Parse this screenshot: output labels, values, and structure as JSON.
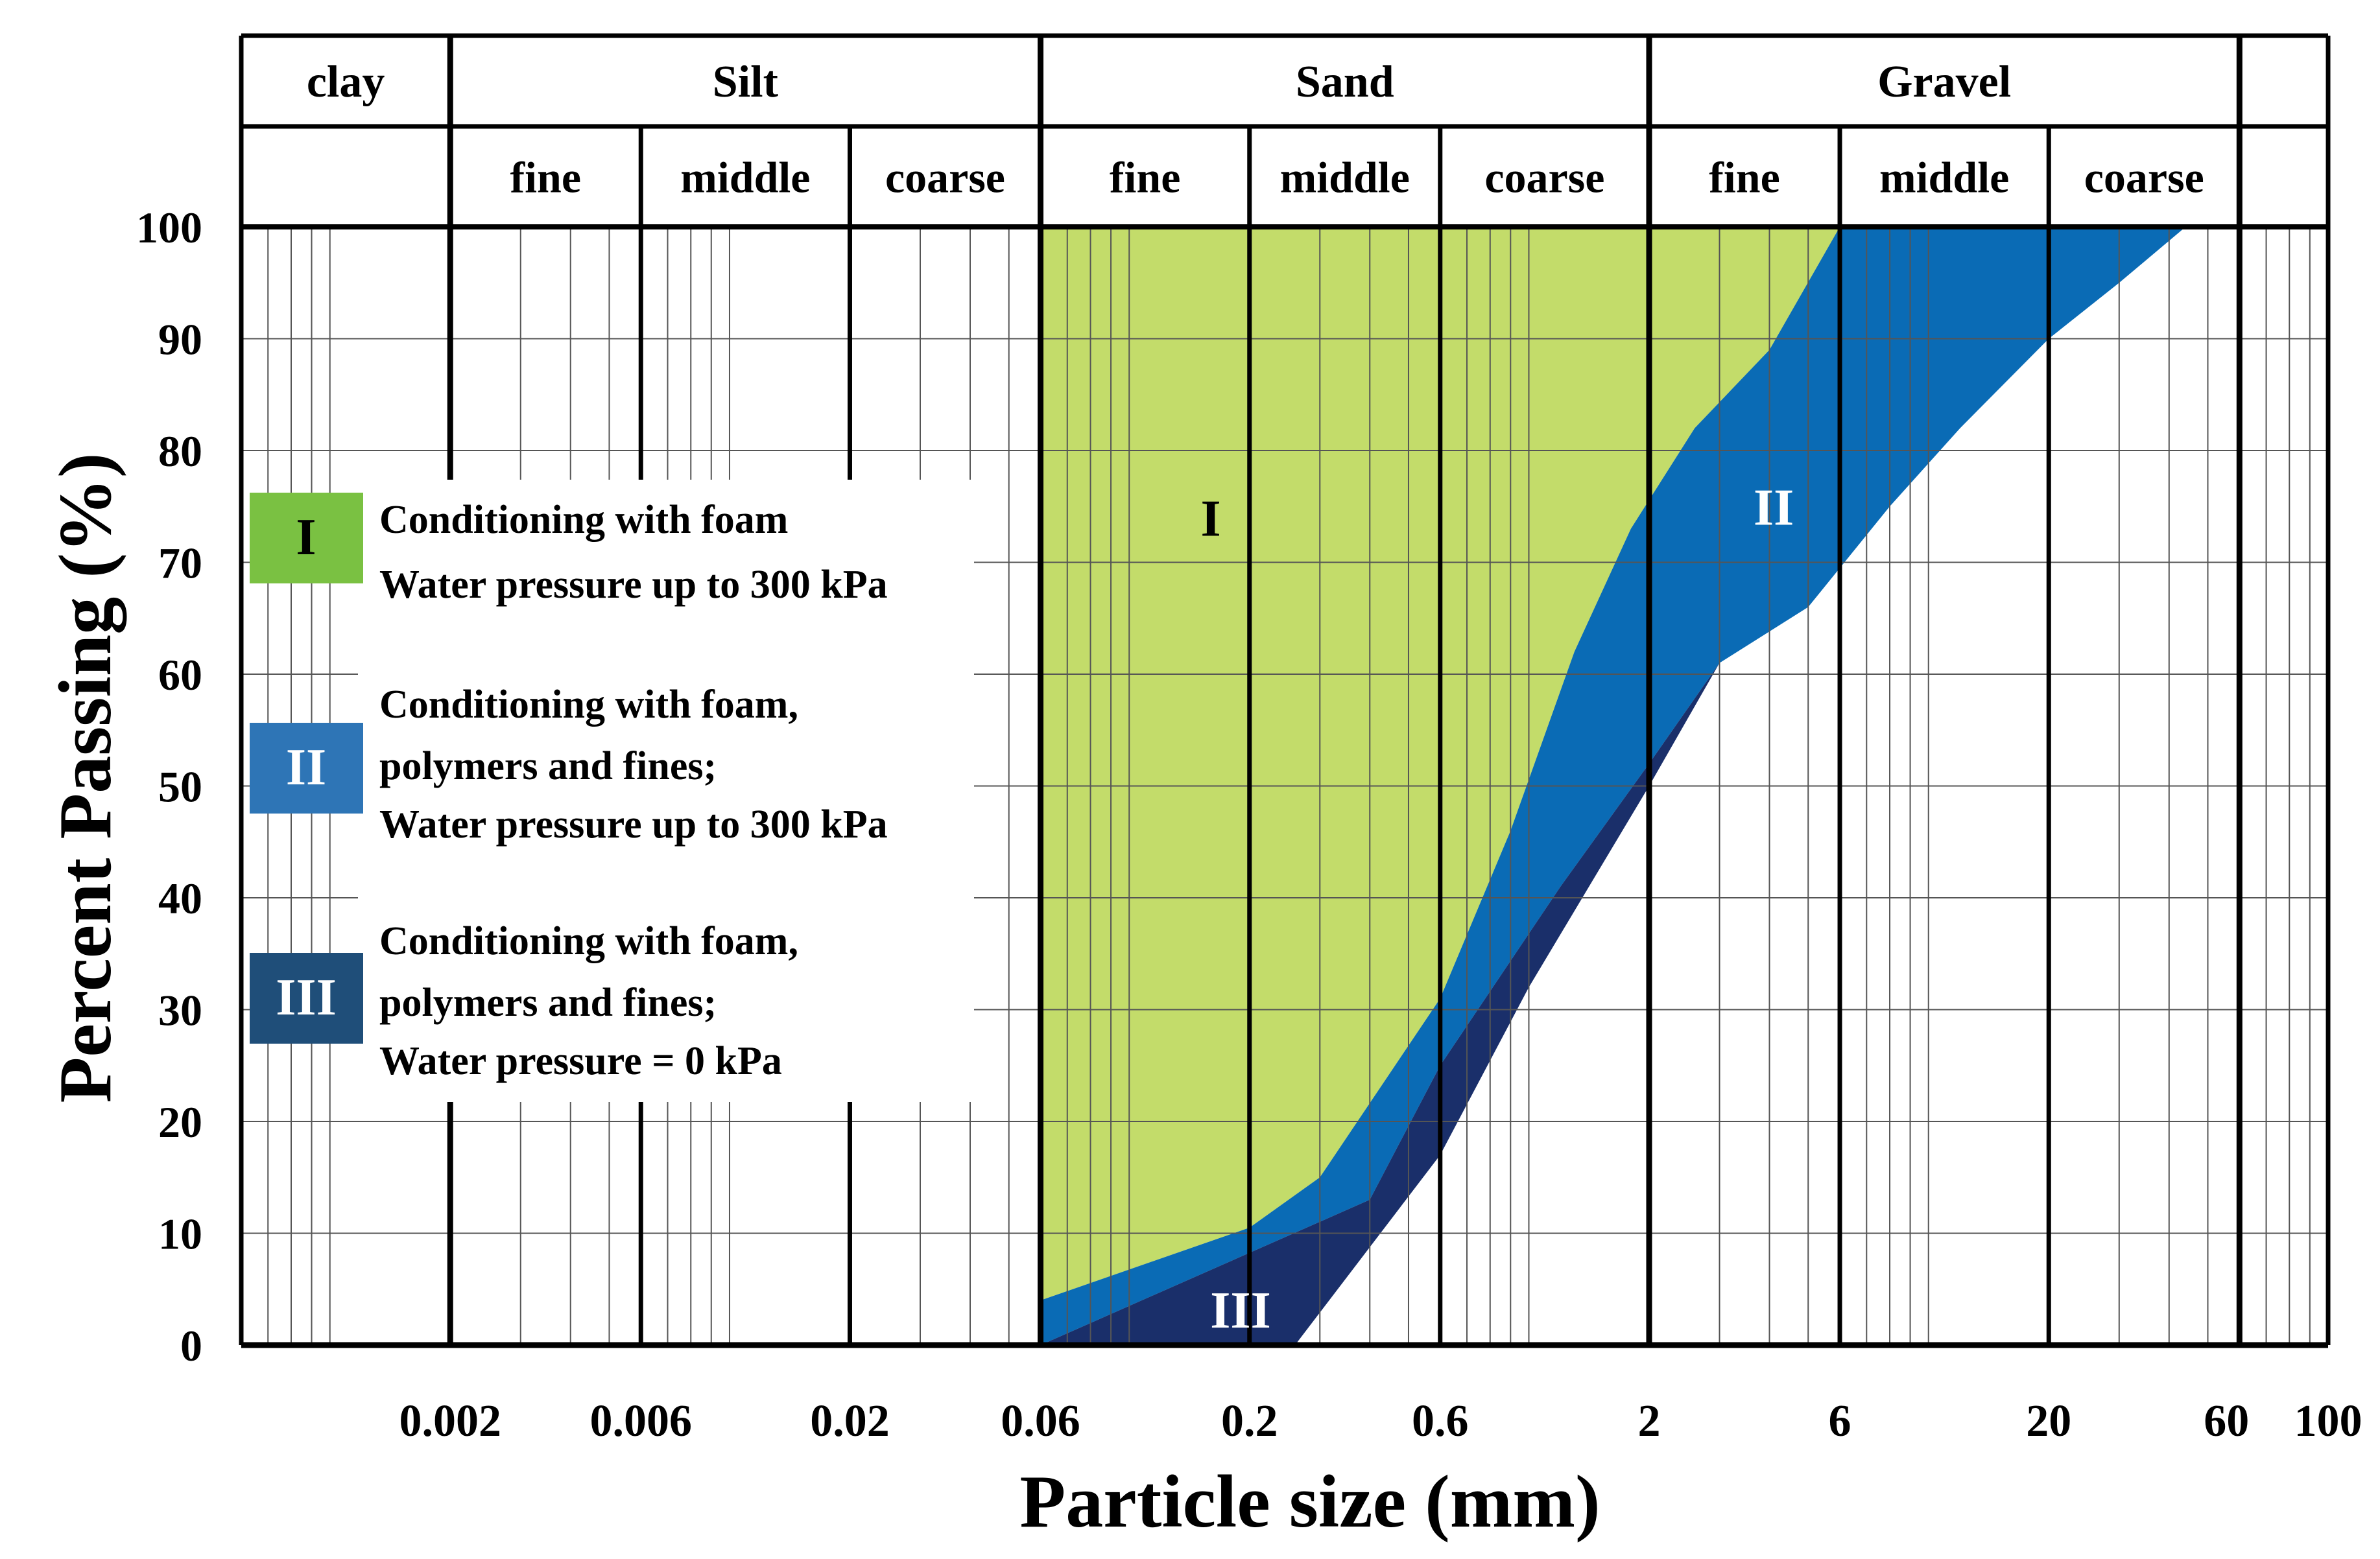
{
  "chart_data": {
    "type": "area",
    "title": "",
    "xlabel": "Particle size (mm)",
    "ylabel": "Percent Passing (%)",
    "x_scale": "log",
    "xlim": [
      0.0006,
      100
    ],
    "ylim": [
      0,
      100
    ],
    "grid": true,
    "y_ticks": [
      "0",
      "10",
      "20",
      "30",
      "40",
      "50",
      "60",
      "70",
      "80",
      "90",
      "100"
    ],
    "x_ticks": [
      {
        "value": 0.002,
        "label": "0.002"
      },
      {
        "value": 0.006,
        "label": "0.006"
      },
      {
        "value": 0.02,
        "label": "0.02"
      },
      {
        "value": 0.06,
        "label": "0.06"
      },
      {
        "value": 0.2,
        "label": "0.2"
      },
      {
        "value": 0.6,
        "label": "0.6"
      },
      {
        "value": 2,
        "label": "2"
      },
      {
        "value": 6,
        "label": "6"
      },
      {
        "value": 20,
        "label": "20"
      },
      {
        "value": 60,
        "label": "60"
      },
      {
        "value": 100,
        "label": "100"
      }
    ],
    "header_top": [
      {
        "label": "clay",
        "from": 0.0006,
        "to": 0.002
      },
      {
        "label": "Silt",
        "from": 0.002,
        "to": 0.06
      },
      {
        "label": "Sand",
        "from": 0.06,
        "to": 2
      },
      {
        "label": "Gravel",
        "from": 2,
        "to": 60
      },
      {
        "label": "",
        "from": 60,
        "to": 100
      }
    ],
    "header_sub": [
      {
        "label": "fine",
        "from": 0.002,
        "to": 0.006
      },
      {
        "label": "middle",
        "from": 0.006,
        "to": 0.02
      },
      {
        "label": "coarse",
        "from": 0.02,
        "to": 0.06
      },
      {
        "label": "fine",
        "from": 0.06,
        "to": 0.2
      },
      {
        "label": "middle",
        "from": 0.2,
        "to": 0.6
      },
      {
        "label": "coarse",
        "from": 0.6,
        "to": 2
      },
      {
        "label": "fine",
        "from": 2,
        "to": 6
      },
      {
        "label": "middle",
        "from": 6,
        "to": 20
      },
      {
        "label": "coarse",
        "from": 20,
        "to": 60
      }
    ],
    "regions": [
      {
        "label": "I",
        "color": "#c3dc6a",
        "label_at": {
          "x": 0.16,
          "y": 74
        },
        "upper": [
          [
            0.06,
            100
          ],
          [
            6,
            100
          ]
        ],
        "lower": [
          [
            0.06,
            4
          ],
          [
            0.2,
            10.5
          ],
          [
            0.3,
            15
          ],
          [
            0.6,
            31
          ],
          [
            0.9,
            46
          ],
          [
            1.3,
            62
          ],
          [
            1.8,
            73
          ],
          [
            2.6,
            82
          ],
          [
            4,
            89
          ],
          [
            6,
            100
          ]
        ]
      },
      {
        "label": "II",
        "color": "#0a6bb5",
        "label_at": {
          "x": 4.1,
          "y": 75
        },
        "upper": [
          [
            0.06,
            4
          ],
          [
            0.2,
            10.5
          ],
          [
            0.3,
            15
          ],
          [
            0.6,
            31
          ],
          [
            0.9,
            46
          ],
          [
            1.3,
            62
          ],
          [
            1.8,
            73
          ],
          [
            2.6,
            82
          ],
          [
            4,
            89
          ],
          [
            6,
            100
          ],
          [
            44,
            100
          ]
        ],
        "lower": [
          [
            0.06,
            0
          ],
          [
            0.4,
            13
          ],
          [
            0.6,
            25
          ],
          [
            1.2,
            41
          ],
          [
            2,
            52
          ],
          [
            3,
            61
          ],
          [
            5,
            66
          ],
          [
            8,
            75
          ],
          [
            12,
            82
          ],
          [
            20,
            90
          ],
          [
            30,
            95
          ],
          [
            44,
            100
          ]
        ]
      },
      {
        "label": "III",
        "color": "#1a2f6a",
        "label_at": {
          "x": 0.19,
          "y": 3.2
        },
        "upper": [
          [
            0.06,
            0
          ],
          [
            0.4,
            13
          ],
          [
            0.6,
            25
          ],
          [
            1.2,
            41
          ],
          [
            2,
            52
          ],
          [
            3,
            61
          ]
        ],
        "lower": [
          [
            0.26,
            0
          ],
          [
            0.6,
            17
          ],
          [
            1,
            32
          ],
          [
            2,
            50
          ],
          [
            3,
            61
          ]
        ]
      }
    ],
    "legend": {
      "placement": "left",
      "items": [
        {
          "swatch": "I",
          "color": "#7ac142",
          "lines": [
            "Conditioning with foam",
            "Water pressure up to 300 kPa"
          ]
        },
        {
          "swatch": "II",
          "color": "#2e75b6",
          "lines": [
            "Conditioning with foam,",
            "polymers and fines;",
            "Water pressure up to 300 kPa"
          ]
        },
        {
          "swatch": "III",
          "color": "#1f4e79",
          "lines": [
            "Conditioning with foam,",
            "polymers and fines;",
            "Water pressure = 0 kPa"
          ]
        }
      ]
    }
  }
}
